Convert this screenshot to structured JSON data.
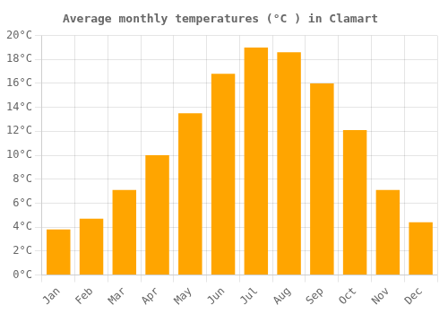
{
  "chart_data": {
    "type": "bar",
    "title": "Average monthly temperatures (°C ) in Clamart",
    "categories": [
      "Jan",
      "Feb",
      "Mar",
      "Apr",
      "May",
      "Jun",
      "Jul",
      "Aug",
      "Sep",
      "Oct",
      "Nov",
      "Dec"
    ],
    "values": [
      3.8,
      4.7,
      7.1,
      10.0,
      13.5,
      16.8,
      19.0,
      18.6,
      16.0,
      12.1,
      7.1,
      4.4
    ],
    "color": "#FFA500",
    "ylim": [
      0,
      20
    ],
    "yticks": [
      {
        "value": 0,
        "label": "0°C"
      },
      {
        "value": 2,
        "label": "2°C"
      },
      {
        "value": 4,
        "label": "4°C"
      },
      {
        "value": 6,
        "label": "6°C"
      },
      {
        "value": 8,
        "label": "8°C"
      },
      {
        "value": 10,
        "label": "10°C"
      },
      {
        "value": 12,
        "label": "12°C"
      },
      {
        "value": 14,
        "label": "14°C"
      },
      {
        "value": 16,
        "label": "16°C"
      },
      {
        "value": 18,
        "label": "18°C"
      },
      {
        "value": 20,
        "label": "20°C"
      }
    ],
    "grid": true
  }
}
